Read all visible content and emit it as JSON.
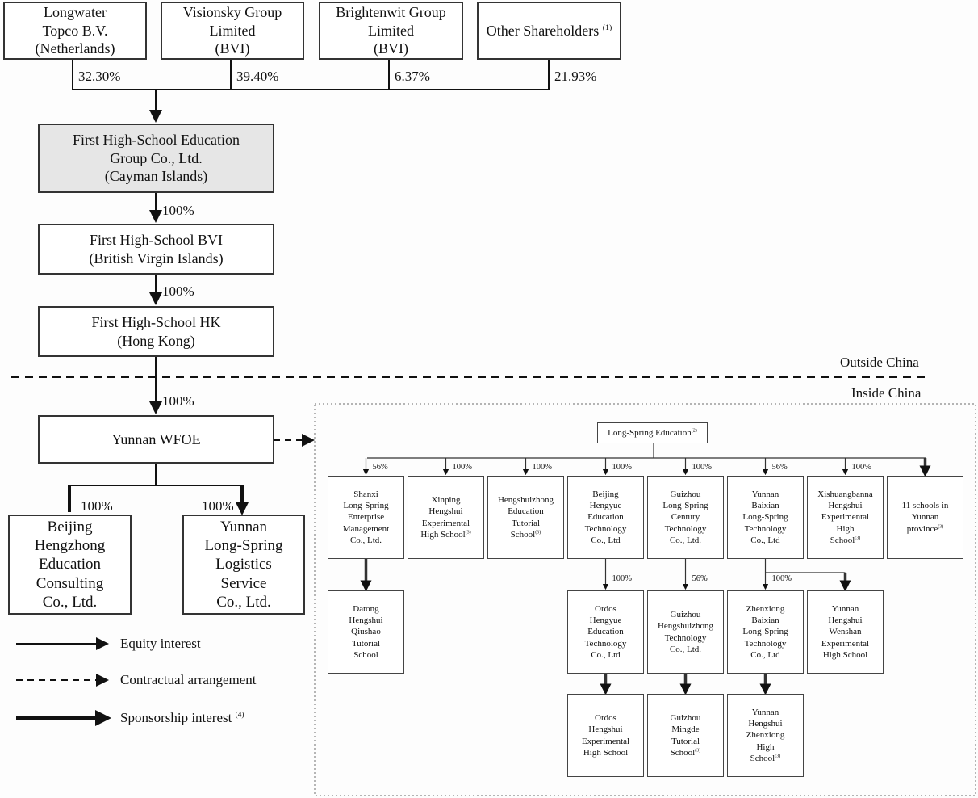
{
  "shareholders": [
    {
      "name": "Longwater\nTopco B.V.\n(Netherlands)",
      "pct": "32.30%"
    },
    {
      "name": "Visionsky Group\nLimited\n(BVI)",
      "pct": "39.40%"
    },
    {
      "name": "Brightenwit Group\nLimited\n(BVI)",
      "pct": "6.37%"
    },
    {
      "name": "Other Shareholders",
      "note": "(1)",
      "pct": "21.93%"
    }
  ],
  "chain": [
    {
      "name": "First High-School Education\nGroup Co., Ltd.\n(Cayman Islands)",
      "fill": "#e6e6e6"
    },
    {
      "name": "First High-School BVI\n(British Virgin Islands)",
      "pct": "100%"
    },
    {
      "name": "First High-School HK\n(Hong Kong)",
      "pct": "100%"
    },
    {
      "name": "Yunnan WFOE",
      "pct": "100%"
    }
  ],
  "boundary": {
    "outside": "Outside China",
    "inside": "Inside China"
  },
  "wfoe_subs": [
    {
      "name": "Beijing\nHengzhong\nEducation\nConsulting\nCo., Ltd.",
      "pct": "100%"
    },
    {
      "name": "Yunnan\nLong-Spring\nLogistics\nService\nCo., Ltd.",
      "pct": "100%"
    }
  ],
  "legend": [
    {
      "label": "Equity interest",
      "style": "solid"
    },
    {
      "label": "Contractual arrangement",
      "style": "dashed"
    },
    {
      "label": "Sponsorship interest",
      "note": "(4)",
      "style": "thick"
    }
  ],
  "vie": {
    "root": {
      "name": "Long-Spring Education",
      "note": "(2)"
    },
    "row1": [
      {
        "name": "Shanxi\nLong-Spring\nEnterprise\nManagement\nCo., Ltd.",
        "pct": "56%"
      },
      {
        "name": "Xinping\nHengshui\nExperimental\nHigh School",
        "note": "(3)",
        "pct": "100%"
      },
      {
        "name": "Hengshuizhong\nEducation\nTutorial\nSchool",
        "note": "(3)",
        "pct": "100%"
      },
      {
        "name": "Beijing\nHengyue\nEducation\nTechnology\nCo., Ltd",
        "pct": "100%"
      },
      {
        "name": "Guizhou\nLong-Spring\nCentury\nTechnology\nCo., Ltd.",
        "pct": "100%"
      },
      {
        "name": "Yunnan\nBaixian\nLong-Spring\nTechnology\nCo., Ltd",
        "pct": "56%"
      },
      {
        "name": "Xishuangbanna\nHengshui\nExperimental\nHigh\nSchool",
        "note": "(3)",
        "pct": "100%"
      },
      {
        "name": "11 schools in\nYunnan\nprovince",
        "note": "(3)",
        "pct": ""
      }
    ],
    "row2": [
      {
        "name": "Datong\nHengshui\nQiushao\nTutorial\nSchool"
      },
      {
        "name": "Ordos\nHengyue\nEducation\nTechnology\nCo., Ltd",
        "pct": "100%"
      },
      {
        "name": "Guizhou\nHengshuizhong\nTechnology\nCo., Ltd.",
        "pct": "56%"
      },
      {
        "name": "Zhenxiong\nBaixian\nLong-Spring\nTechnology\nCo., Ltd",
        "pct": "100%"
      },
      {
        "name": "Yunnan\nHengshui\nWenshan\nExperimental\nHigh School"
      }
    ],
    "row3": [
      {
        "name": "Ordos\nHengshui\nExperimental\nHigh School"
      },
      {
        "name": "Guizhou\nMingde\nTutorial\nSchool",
        "note": "(3)"
      },
      {
        "name": "Yunnan\nHengshui\nZhenxiong\nHigh\nSchool",
        "note": "(3)"
      }
    ]
  }
}
